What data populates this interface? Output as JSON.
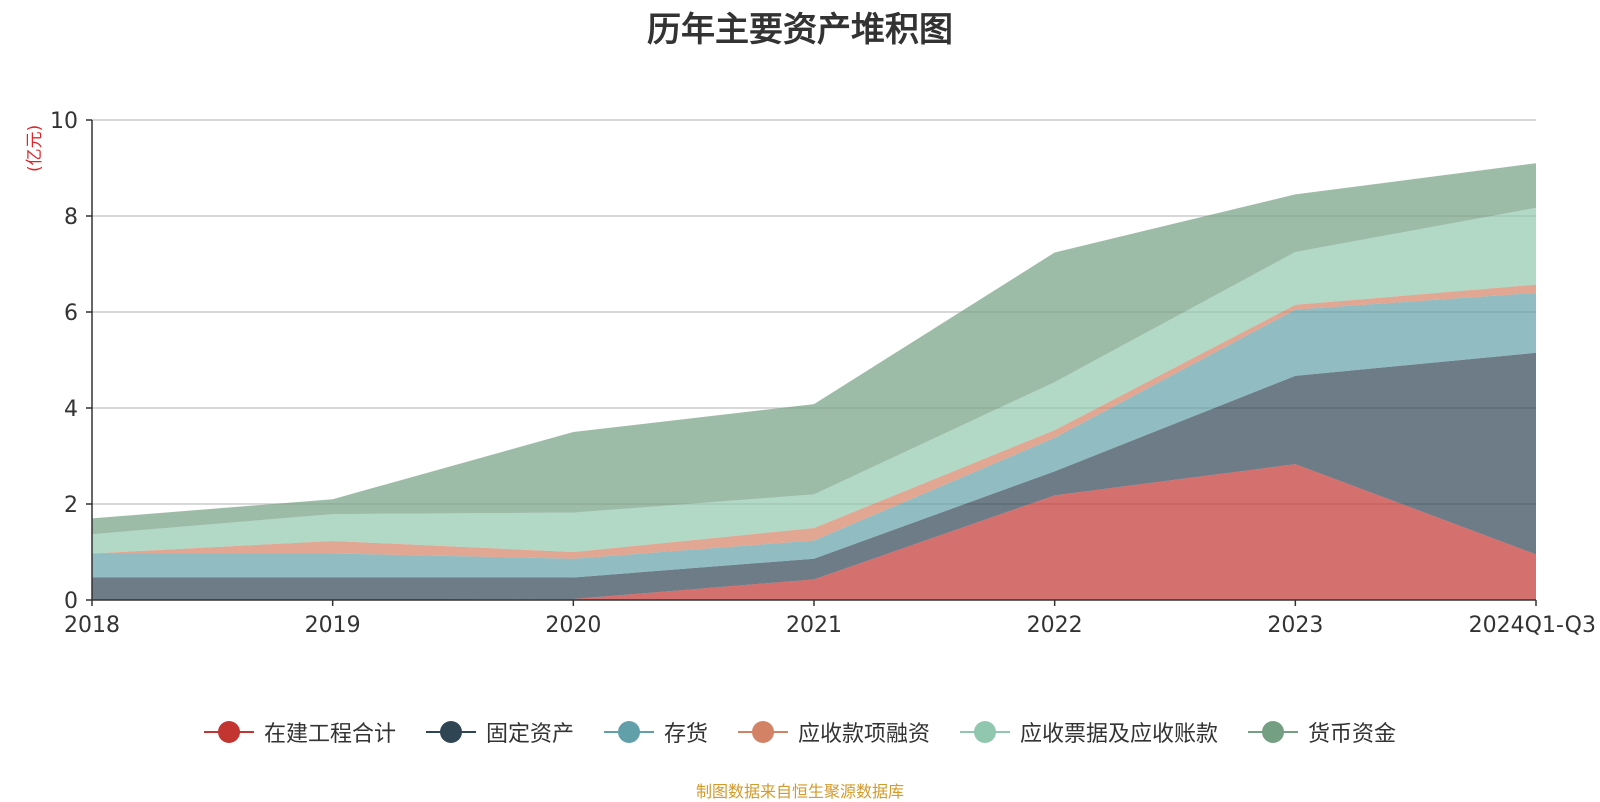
{
  "title": "历年主要资产堆积图",
  "footer": "制图数据来自恒生聚源数据库",
  "chart_data": {
    "type": "area",
    "stacked": true,
    "title": "历年主要资产堆积图",
    "ylabel": "(亿元)",
    "xlabel": "",
    "categories": [
      "2018",
      "2019",
      "2020",
      "2021",
      "2022",
      "2023",
      "2024Q1-Q3"
    ],
    "ylim": [
      0,
      10
    ],
    "yticks": [
      0,
      2,
      4,
      6,
      8,
      10
    ],
    "grid": true,
    "legend_position": "bottom",
    "series": [
      {
        "name": "在建工程合计",
        "color": "#c23531",
        "values": [
          0.0,
          0.0,
          0.02,
          0.43,
          2.18,
          2.83,
          0.95
        ]
      },
      {
        "name": "固定资产",
        "color": "#2f4554",
        "values": [
          0.47,
          0.47,
          0.45,
          0.43,
          0.5,
          1.84,
          4.2
        ]
      },
      {
        "name": "存货",
        "color": "#61a0a8",
        "values": [
          0.5,
          0.5,
          0.39,
          0.38,
          0.7,
          1.38,
          1.25
        ]
      },
      {
        "name": "应收款项融资",
        "color": "#d48265",
        "values": [
          0.0,
          0.26,
          0.14,
          0.26,
          0.16,
          0.1,
          0.17
        ]
      },
      {
        "name": "应收票据及应收账款",
        "color": "#91c7ae",
        "values": [
          0.4,
          0.56,
          0.82,
          0.7,
          1.0,
          1.1,
          1.6
        ]
      },
      {
        "name": "货币资金",
        "color": "#749f83",
        "values": [
          0.33,
          0.31,
          1.68,
          1.88,
          2.7,
          1.2,
          0.93
        ]
      }
    ]
  }
}
